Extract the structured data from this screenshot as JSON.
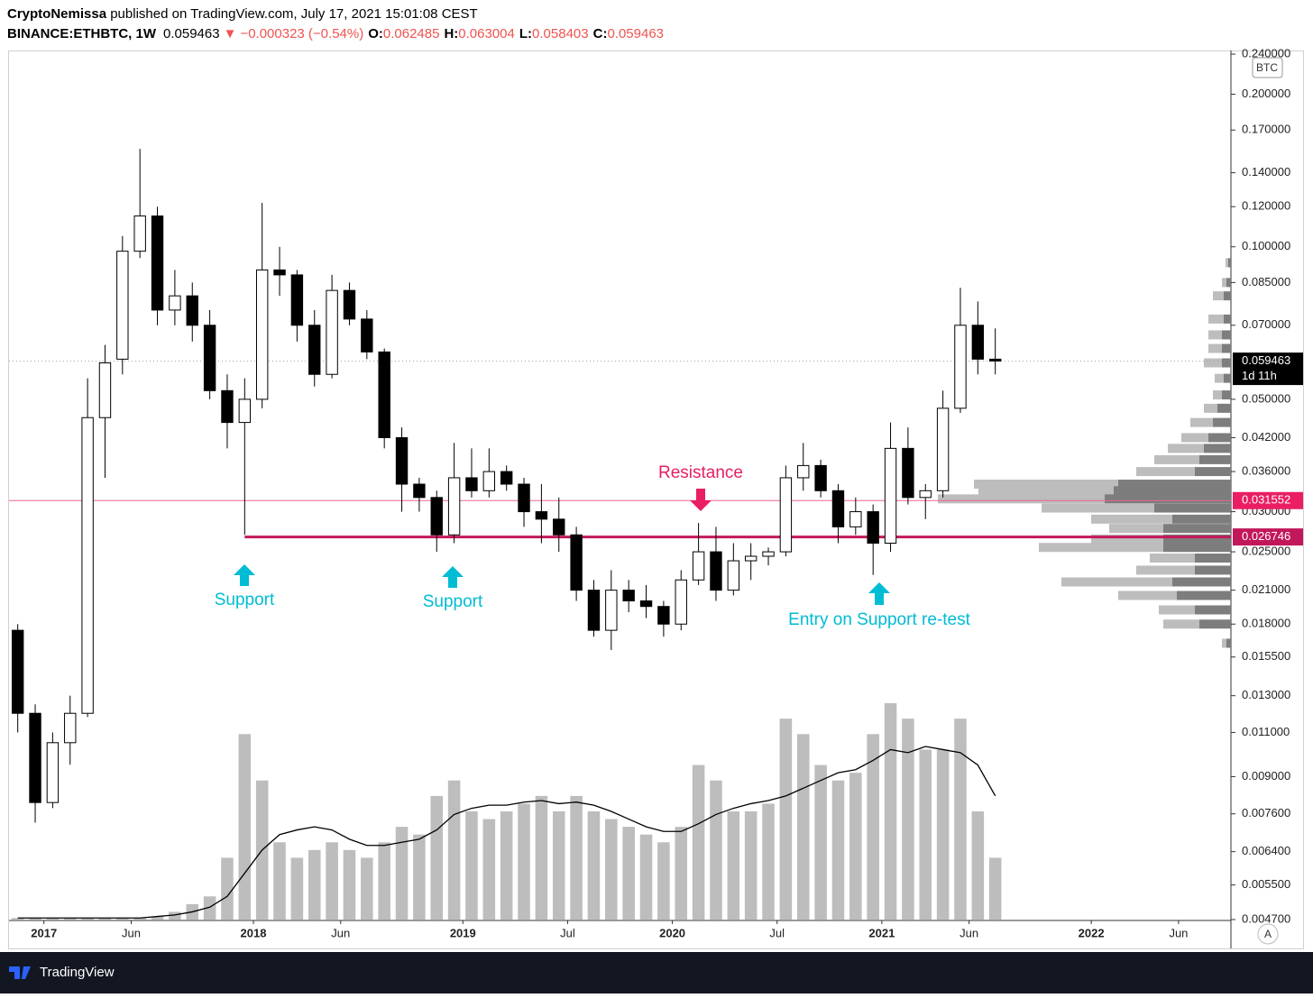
{
  "header": {
    "author": "CryptoNemissa",
    "published": " published on TradingView.com, July 17, 2021 15:01:08 CEST",
    "symbol": "BINANCE:ETHBTC, 1W",
    "last": "0.059463",
    "arrow": "▼",
    "change": "−0.000323 (−0.54%)",
    "o_label": "O:",
    "open": "0.062485",
    "h_label": "H:",
    "high": "0.063004",
    "l_label": "L:",
    "low": "0.058403",
    "c_label": "C:",
    "close": "0.059463"
  },
  "chart_data": {
    "type": "candlestick",
    "log_scale": true,
    "currency": "BTC",
    "up_color": "#ffffff",
    "down_color": "#000000",
    "volume_color": "#bdbdbd",
    "x": [
      "2016-11",
      "2016-12",
      "2017-01",
      "2017-02",
      "2017-03",
      "2017-04",
      "2017-05",
      "2017-06",
      "2017-07",
      "2017-08",
      "2017-09",
      "2017-10",
      "2017-11",
      "2017-12",
      "2018-01",
      "2018-02",
      "2018-03",
      "2018-04",
      "2018-05",
      "2018-06",
      "2018-07",
      "2018-08",
      "2018-09",
      "2018-10",
      "2018-11",
      "2018-12",
      "2019-01",
      "2019-02",
      "2019-03",
      "2019-04",
      "2019-05",
      "2019-06",
      "2019-07",
      "2019-08",
      "2019-09",
      "2019-10",
      "2019-11",
      "2019-12",
      "2020-01",
      "2020-02",
      "2020-03",
      "2020-04",
      "2020-05",
      "2020-06",
      "2020-07",
      "2020-08",
      "2020-09",
      "2020-10",
      "2020-11",
      "2020-12",
      "2021-01",
      "2021-02",
      "2021-03",
      "2021-04",
      "2021-05",
      "2021-06",
      "2021-07"
    ],
    "open": [
      0.0175,
      0.012,
      0.008,
      0.0105,
      0.012,
      0.046,
      0.06,
      0.098,
      0.115,
      0.075,
      0.08,
      0.07,
      0.052,
      0.045,
      0.05,
      0.09,
      0.088,
      0.07,
      0.056,
      0.082,
      0.072,
      0.062,
      0.042,
      0.034,
      0.032,
      0.027,
      0.035,
      0.033,
      0.036,
      0.034,
      0.03,
      0.029,
      0.027,
      0.021,
      0.0175,
      0.021,
      0.02,
      0.0195,
      0.018,
      0.022,
      0.025,
      0.021,
      0.024,
      0.0245,
      0.025,
      0.035,
      0.037,
      0.033,
      0.028,
      0.03,
      0.026,
      0.04,
      0.032,
      0.033,
      0.048,
      0.07,
      0.06
    ],
    "high": [
      0.018,
      0.0125,
      0.011,
      0.013,
      0.055,
      0.064,
      0.105,
      0.156,
      0.12,
      0.09,
      0.085,
      0.075,
      0.056,
      0.055,
      0.122,
      0.1,
      0.09,
      0.075,
      0.088,
      0.085,
      0.075,
      0.063,
      0.044,
      0.035,
      0.033,
      0.041,
      0.04,
      0.04,
      0.037,
      0.035,
      0.034,
      0.032,
      0.028,
      0.022,
      0.023,
      0.022,
      0.0215,
      0.02,
      0.023,
      0.0285,
      0.028,
      0.026,
      0.026,
      0.0255,
      0.037,
      0.041,
      0.038,
      0.034,
      0.032,
      0.031,
      0.045,
      0.044,
      0.034,
      0.052,
      0.083,
      0.078,
      0.069
    ],
    "low": [
      0.011,
      0.0073,
      0.0078,
      0.0095,
      0.0118,
      0.035,
      0.056,
      0.095,
      0.07,
      0.07,
      0.065,
      0.05,
      0.04,
      0.027,
      0.048,
      0.08,
      0.065,
      0.053,
      0.055,
      0.07,
      0.06,
      0.04,
      0.03,
      0.03,
      0.025,
      0.026,
      0.032,
      0.032,
      0.033,
      0.028,
      0.026,
      0.025,
      0.02,
      0.017,
      0.016,
      0.019,
      0.0185,
      0.017,
      0.0175,
      0.0215,
      0.02,
      0.0205,
      0.022,
      0.0235,
      0.0245,
      0.033,
      0.032,
      0.026,
      0.027,
      0.0225,
      0.025,
      0.031,
      0.029,
      0.032,
      0.047,
      0.056,
      0.056
    ],
    "close": [
      0.012,
      0.008,
      0.0105,
      0.012,
      0.046,
      0.059,
      0.098,
      0.115,
      0.075,
      0.08,
      0.07,
      0.052,
      0.045,
      0.05,
      0.09,
      0.088,
      0.07,
      0.056,
      0.082,
      0.072,
      0.062,
      0.042,
      0.034,
      0.032,
      0.027,
      0.035,
      0.033,
      0.036,
      0.034,
      0.03,
      0.029,
      0.027,
      0.021,
      0.0175,
      0.021,
      0.02,
      0.0195,
      0.018,
      0.022,
      0.025,
      0.021,
      0.024,
      0.0245,
      0.025,
      0.035,
      0.037,
      0.033,
      0.028,
      0.03,
      0.026,
      0.04,
      0.032,
      0.033,
      0.048,
      0.07,
      0.06,
      0.0595
    ],
    "volume": [
      1,
      1,
      1,
      1,
      1,
      1,
      1,
      1,
      2,
      5,
      10,
      15,
      40,
      120,
      90,
      50,
      40,
      45,
      50,
      45,
      40,
      50,
      60,
      55,
      80,
      90,
      70,
      65,
      70,
      75,
      80,
      70,
      80,
      70,
      65,
      60,
      55,
      50,
      60,
      100,
      90,
      70,
      70,
      75,
      130,
      120,
      100,
      90,
      95,
      120,
      140,
      130,
      110,
      110,
      130,
      70,
      40
    ],
    "volume_ma": [
      1,
      1,
      1,
      1,
      1,
      1,
      1,
      1,
      2,
      3,
      5,
      8,
      15,
      30,
      45,
      55,
      58,
      60,
      58,
      52,
      48,
      48,
      50,
      52,
      58,
      68,
      72,
      74,
      74,
      76,
      77,
      75,
      76,
      74,
      70,
      65,
      60,
      57,
      57,
      62,
      68,
      72,
      75,
      77,
      80,
      85,
      90,
      95,
      97,
      103,
      110,
      108,
      112,
      110,
      108,
      100,
      80
    ],
    "xlim": [
      "2016-11",
      "2022-09"
    ],
    "xticks": [
      {
        "value": "2017-01",
        "label": "2017"
      },
      {
        "value": "2017-06",
        "label": "Jun"
      },
      {
        "value": "2018-01",
        "label": "2018"
      },
      {
        "value": "2018-06",
        "label": "Jun"
      },
      {
        "value": "2019-01",
        "label": "2019"
      },
      {
        "value": "2019-07",
        "label": "Jul"
      },
      {
        "value": "2020-01",
        "label": "2020"
      },
      {
        "value": "2020-07",
        "label": "Jul"
      },
      {
        "value": "2021-01",
        "label": "2021"
      },
      {
        "value": "2021-06",
        "label": "Jun"
      },
      {
        "value": "2022-01",
        "label": "2022"
      },
      {
        "value": "2022-06",
        "label": "Jun"
      }
    ],
    "ylim": [
      0.0047,
      0.243
    ],
    "yticks": [
      {
        "value": 0.24,
        "label": "0.240000"
      },
      {
        "value": 0.2,
        "label": "0.200000"
      },
      {
        "value": 0.17,
        "label": "0.170000"
      },
      {
        "value": 0.14,
        "label": "0.140000"
      },
      {
        "value": 0.12,
        "label": "0.120000"
      },
      {
        "value": 0.1,
        "label": "0.100000"
      },
      {
        "value": 0.085,
        "label": "0.085000"
      },
      {
        "value": 0.07,
        "label": "0.070000"
      },
      {
        "value": 0.05,
        "label": "0.050000"
      },
      {
        "value": 0.042,
        "label": "0.042000"
      },
      {
        "value": 0.036,
        "label": "0.036000"
      },
      {
        "value": 0.03,
        "label": "0.030000"
      },
      {
        "value": 0.025,
        "label": "0.025000"
      },
      {
        "value": 0.021,
        "label": "0.021000"
      },
      {
        "value": 0.018,
        "label": "0.018000"
      },
      {
        "value": 0.0155,
        "label": "0.015500"
      },
      {
        "value": 0.013,
        "label": "0.013000"
      },
      {
        "value": 0.011,
        "label": "0.011000"
      },
      {
        "value": 0.009,
        "label": "0.009000"
      },
      {
        "value": 0.0076,
        "label": "0.007600"
      },
      {
        "value": 0.0064,
        "label": "0.006400"
      },
      {
        "value": 0.0055,
        "label": "0.005500"
      },
      {
        "value": 0.0047,
        "label": "0.004700"
      }
    ],
    "price_lines": [
      {
        "value": 0.059463,
        "color": "#9e9e9e",
        "style": "dotted",
        "label_color": "#000000",
        "countdown": "1d 11h"
      },
      {
        "value": 0.031552,
        "color": "#f06292",
        "style": "solid",
        "label_color": "#e91e63"
      },
      {
        "value": 0.026746,
        "color": "#c2185b",
        "style": "thick",
        "from": "2017-12",
        "label_color": "#c2185b"
      }
    ],
    "profile_levels": [
      0.093,
      0.085,
      0.08,
      0.072,
      0.067,
      0.063,
      0.059,
      0.055,
      0.051,
      0.048,
      0.045,
      0.042,
      0.04,
      0.038,
      0.036,
      0.034,
      0.033,
      0.0318,
      0.0305,
      0.029,
      0.0278,
      0.0265,
      0.0255,
      0.0243,
      0.023,
      0.0218,
      0.0205,
      0.0192,
      0.018,
      0.0165
    ],
    "profile_dark": [
      3,
      5,
      8,
      8,
      10,
      10,
      10,
      8,
      10,
      15,
      20,
      25,
      30,
      35,
      40,
      125,
      130,
      140,
      85,
      65,
      75,
      75,
      75,
      40,
      40,
      65,
      60,
      40,
      35,
      5
    ],
    "profile_light": [
      3,
      5,
      12,
      17,
      15,
      15,
      20,
      10,
      10,
      15,
      25,
      30,
      40,
      50,
      65,
      160,
      150,
      185,
      125,
      90,
      60,
      80,
      138,
      50,
      65,
      123,
      65,
      40,
      40,
      5
    ],
    "annotations": [
      "Support",
      "Support",
      "Resistance",
      "Entry on Support re-test"
    ]
  },
  "footer": {
    "brand": "TradingView",
    "auto_button": "A"
  }
}
